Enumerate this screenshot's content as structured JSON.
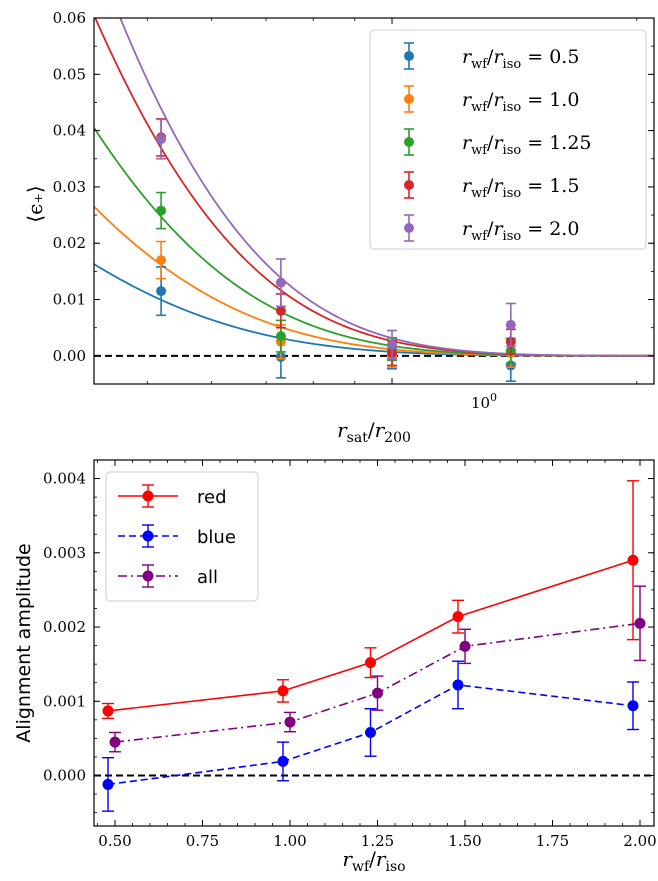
{
  "chart_data": [
    {
      "type": "scatter",
      "xscale": "log",
      "xlabel": "r_sat/r_200",
      "ylabel": "⟨ε+⟩",
      "xlim": [
        0.43,
        2.1
      ],
      "ylim": [
        -0.005,
        0.06
      ],
      "xticks": [
        {
          "value": 1.0,
          "label": "10^0"
        }
      ],
      "yticks": [
        -0.0,
        0.01,
        0.02,
        0.03,
        0.04,
        0.05,
        0.06
      ],
      "ytick_labels": [
        "0.00",
        "0.01",
        "0.02",
        "0.03",
        "0.04",
        "0.05",
        "0.06"
      ],
      "zero_line": true,
      "legend_location": "upper right",
      "x_points": [
        0.52,
        0.73,
        1.0,
        1.4
      ],
      "series": [
        {
          "name": "r_wf/r_iso = 0.5",
          "color": "#1f77b4",
          "x": [
            0.52,
            0.73,
            1.0,
            1.4
          ],
          "y": [
            0.0115,
            -0.0002,
            0.0002,
            -0.0017
          ],
          "yerr": [
            0.0043,
            0.0037,
            0.0025,
            0.0028
          ],
          "fit_amplitude_at_xmin": 0.0163,
          "fit_scale": 0.182
        },
        {
          "name": "r_wf/r_iso = 1.0",
          "color": "#ff7f0e",
          "x": [
            0.52,
            0.73,
            1.0,
            1.4
          ],
          "y": [
            0.017,
            0.0025,
            0.0,
            0.0005
          ],
          "yerr": [
            0.0033,
            0.003,
            0.002,
            0.0025
          ],
          "fit_amplitude_at_xmin": 0.0265,
          "fit_scale": 0.182
        },
        {
          "name": "r_wf/r_iso = 1.25",
          "color": "#2ca02c",
          "x": [
            0.52,
            0.73,
            1.0,
            1.4
          ],
          "y": [
            0.0258,
            0.0035,
            0.0012,
            0.0009
          ],
          "yerr": [
            0.0032,
            0.0028,
            0.002,
            0.0022
          ],
          "fit_amplitude_at_xmin": 0.0405,
          "fit_scale": 0.182
        },
        {
          "name": "r_wf/r_iso = 1.5",
          "color": "#d62728",
          "x": [
            0.52,
            0.73,
            1.0,
            1.4
          ],
          "y": [
            0.0388,
            0.008,
            0.0005,
            0.0025
          ],
          "yerr": [
            0.0033,
            0.003,
            0.0022,
            0.0022
          ],
          "fit_amplitude_at_xmin": 0.0605,
          "fit_scale": 0.182
        },
        {
          "name": "r_wf/r_iso = 2.0",
          "color": "#9467bd",
          "x": [
            0.52,
            0.73,
            1.0,
            1.4
          ],
          "y": [
            0.0385,
            0.013,
            0.002,
            0.0055
          ],
          "yerr": [
            0.0035,
            0.0042,
            0.0025,
            0.0038
          ],
          "fit_amplitude_at_xmin": 0.072,
          "fit_scale": 0.182
        }
      ],
      "hidden_points_note": ""
    },
    {
      "type": "line",
      "xlabel": "r_wf/r_iso",
      "ylabel": "Alignment amplitude",
      "xlim": [
        0.44,
        2.04
      ],
      "ylim": [
        -0.00068,
        0.00425
      ],
      "xticks": [
        0.5,
        0.75,
        1.0,
        1.25,
        1.5,
        1.75,
        2.0
      ],
      "xtick_labels": [
        "0.50",
        "0.75",
        "1.00",
        "1.25",
        "1.50",
        "1.75",
        "2.00"
      ],
      "yticks": [
        0.0,
        0.001,
        0.002,
        0.003,
        0.004
      ],
      "ytick_labels": [
        "0.000",
        "0.001",
        "0.002",
        "0.003",
        "0.004"
      ],
      "zero_line": true,
      "legend_location": "upper left",
      "series": [
        {
          "name": "red",
          "color": "#ff0000",
          "linestyle": "solid",
          "x": [
            0.48,
            0.98,
            1.23,
            1.48,
            1.98
          ],
          "y": [
            0.00087,
            0.00114,
            0.00152,
            0.00214,
            0.0029
          ],
          "yerr": [
            0.0001,
            0.00015,
            0.0002,
            0.00022,
            0.00107
          ]
        },
        {
          "name": "blue",
          "color": "#0000ff",
          "linestyle": "dashed",
          "x": [
            0.48,
            0.98,
            1.23,
            1.48,
            1.98
          ],
          "y": [
            -0.00012,
            0.00019,
            0.00058,
            0.00122,
            0.00094
          ],
          "yerr": [
            0.00036,
            0.00026,
            0.00032,
            0.00032,
            0.00032
          ]
        },
        {
          "name": "all",
          "color": "#800080",
          "linestyle": "dashdot",
          "x": [
            0.5,
            1.0,
            1.25,
            1.5,
            2.0
          ],
          "y": [
            0.00045,
            0.00072,
            0.00111,
            0.00174,
            0.00205
          ],
          "yerr": [
            0.00013,
            0.00013,
            0.00023,
            0.00023,
            0.0005
          ]
        }
      ]
    }
  ],
  "labels": {
    "top_xlabel_main": "r",
    "top_xlabel_sub1": "sat",
    "top_xlabel_slash": "/",
    "top_xlabel_sub2": "200",
    "top_ylabel": "⟨ϵ₊⟩",
    "top_xtick_base": "10",
    "top_xtick_exp": "0",
    "bot_xlabel_main": "r",
    "bot_xlabel_sub1": "wf",
    "bot_xlabel_sub2": "iso",
    "bot_ylabel": "Alignment amplitude",
    "legend_r": "r",
    "legend_wf": "wf",
    "legend_iso": "iso",
    "legend_values": [
      "0.5",
      "1.0",
      "1.25",
      "1.5",
      "2.0"
    ]
  }
}
